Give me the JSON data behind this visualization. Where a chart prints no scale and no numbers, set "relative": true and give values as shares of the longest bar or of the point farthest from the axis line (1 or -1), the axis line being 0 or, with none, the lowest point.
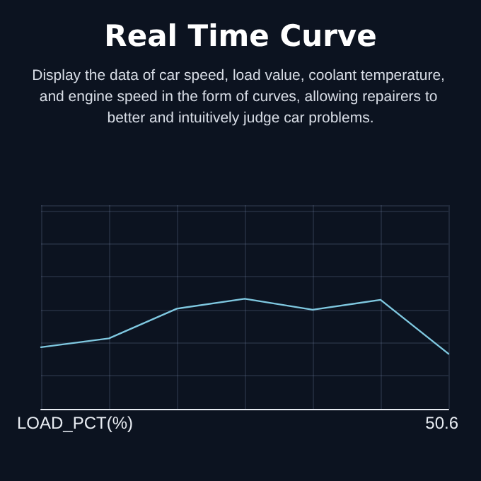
{
  "chart_data": {
    "type": "line",
    "title": "Real Time Curve",
    "subtitle": "Display the data of car speed, load value, coolant temperature, and engine speed in the form of curves, allowing repairers to better and intuitively judge car problems.",
    "xlabel": "LOAD_PCT(%)",
    "annotations": [
      "50.6"
    ],
    "relative": true,
    "categories": [
      null,
      null,
      null,
      null,
      null,
      null,
      null
    ],
    "series": [
      {
        "color": "#7fc8e0",
        "values": [
          0.56,
          0.64,
          0.91,
          1,
          0.9,
          0.99,
          0.5
        ]
      }
    ],
    "grid": true,
    "marker": "none",
    "line_style": "solid"
  }
}
